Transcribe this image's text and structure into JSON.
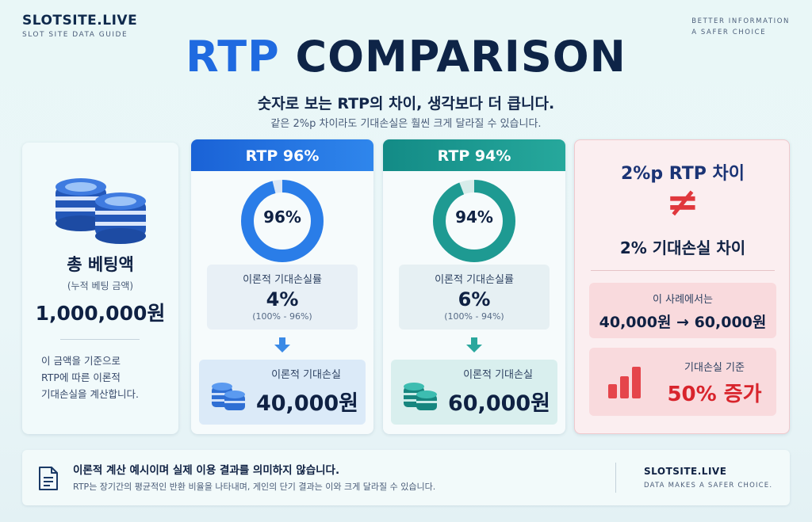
{
  "header": {
    "brand": "SLOTSITE.LIVE",
    "brand_sub": "SLOT SITE DATA GUIDE",
    "tagline_1": "BETTER INFORMATION",
    "tagline_2": "A SAFER CHOICE",
    "title_accent": "RTP",
    "title_rest": " COMPARISON",
    "subtitle": "숫자로 보는 RTP의 차이, 생각보다 더 큽니다.",
    "subline": "같은 2%p 차이라도 기대손실은 훨씬 크게 달라질 수 있습니다."
  },
  "total_bet": {
    "title": "총 베팅액",
    "paren": "(누적 베팅 금액)",
    "amount": "1,000,000원",
    "note_1": "이 금액을 기준으로",
    "note_2": "RTP에 따른 이론적",
    "note_3": "기대손실을 계산합니다."
  },
  "rtp96": {
    "header": "RTP 96%",
    "ring_label": "96%",
    "ring_fraction": 0.96,
    "loss_rate_label": "이론적 기대손실률",
    "loss_rate": "4%",
    "loss_calc": "(100% - 96%)",
    "expected_loss_label": "이론적 기대손실",
    "expected_loss": "40,000원",
    "color": "#2a7de8"
  },
  "rtp94": {
    "header": "RTP 94%",
    "ring_label": "94%",
    "ring_fraction": 0.94,
    "loss_rate_label": "이론적 기대손실률",
    "loss_rate": "6%",
    "loss_calc": "(100% - 94%)",
    "expected_loss_label": "이론적 기대손실",
    "expected_loss": "60,000원",
    "color": "#1e9a92"
  },
  "difference": {
    "line1": "2%p RTP 차이",
    "neq": "≠",
    "line2": "2% 기대손실 차이",
    "case_label": "이 사례에서는",
    "case_value": "40,000원 → 60,000원",
    "increase_label": "기대손실 기준",
    "increase_value": "50% 증가"
  },
  "footer": {
    "disclaimer": "이론적 계산 예시이며 실제 이용 결과를 의미하지 않습니다.",
    "note": "RTP는 장기간의 평균적인 반환 비율을 나타내며, 게인의 단기 결과는 이와 크게 달라질 수 있습니다.",
    "brand": "SLOTSITE.LIVE",
    "brand_sub": "DATA MAKES A SAFER CHOICE."
  }
}
